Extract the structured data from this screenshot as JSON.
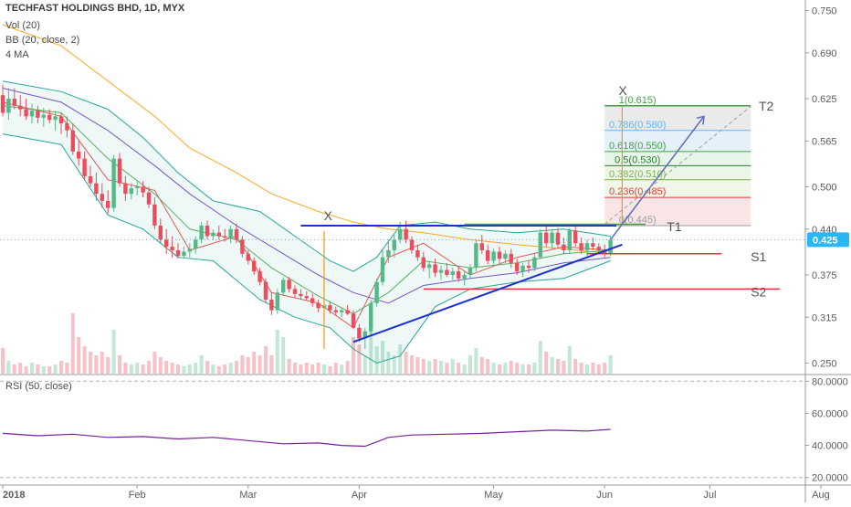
{
  "header": {
    "title": "TECHFAST HOLDINGS BHD, 1D, MYX",
    "indicators": [
      "Vol (20)",
      "BB (20, close, 2)",
      "4 MA"
    ],
    "rsi_label": "RSI (50, close)"
  },
  "price_scale": {
    "ticks": [
      "0.750",
      "0.690",
      "0.625",
      "0.565",
      "0.500",
      "0.440",
      "0.375",
      "0.315",
      "0.250"
    ],
    "last_price": "0.425"
  },
  "rsi_scale": {
    "ticks": [
      "80.0000",
      "60.0000",
      "40.0000",
      "20.0000"
    ]
  },
  "time_axis": {
    "labels": [
      "2018",
      "Feb",
      "Mar",
      "Apr",
      "May",
      "Jun",
      "Jul",
      "Aug"
    ]
  },
  "fib": {
    "levels": [
      {
        "label": "1(0.615)",
        "color": "#43a047"
      },
      {
        "label": "0.786(0.580)",
        "color": "#64b5f6"
      },
      {
        "label": "0.618(0.550)",
        "color": "#43a047"
      },
      {
        "label": "0.5(0.530)",
        "color": "#2e7d32"
      },
      {
        "label": "0.382(0.510)",
        "color": "#7cb342"
      },
      {
        "label": "0.236(0.485)",
        "color": "#e53935"
      },
      {
        "label": "0(0.445)",
        "color": "#9e9e9e"
      }
    ]
  },
  "annotations": {
    "t1": "T1",
    "t2": "T2",
    "s1": "S1",
    "s2": "S2",
    "x_left": "X",
    "x_right": "X"
  },
  "colors": {
    "up": "#53b987",
    "down": "#eb4d5c",
    "bb_band": "#26a69a",
    "ma_fast": "#e53935",
    "ma_mid": "#43a047",
    "ma_slow": "#673ab7",
    "ma_long": "#ff9800",
    "rsi_line": "#7b1fa2",
    "resistance": "#1e2fd0",
    "support": "#e53935",
    "projection": "#5c6bc0",
    "last_price_badge": "#29b6f6"
  },
  "chart_data": {
    "type": "candlestick",
    "title": "TECHFAST HOLDINGS BHD, 1D, MYX",
    "interval": "1D",
    "x_range": [
      "2018-01-01",
      "2018-08-20"
    ],
    "ylim": [
      0.235,
      0.765
    ],
    "last_close": 0.425,
    "candles": [
      [
        0.63,
        0.645,
        0.6,
        0.605
      ],
      [
        0.605,
        0.64,
        0.595,
        0.625
      ],
      [
        0.625,
        0.64,
        0.61,
        0.615
      ],
      [
        0.615,
        0.63,
        0.6,
        0.61
      ],
      [
        0.61,
        0.625,
        0.595,
        0.6
      ],
      [
        0.6,
        0.618,
        0.59,
        0.608
      ],
      [
        0.608,
        0.615,
        0.59,
        0.598
      ],
      [
        0.598,
        0.612,
        0.585,
        0.602
      ],
      [
        0.602,
        0.61,
        0.59,
        0.595
      ],
      [
        0.595,
        0.608,
        0.58,
        0.6
      ],
      [
        0.6,
        0.605,
        0.575,
        0.59
      ],
      [
        0.59,
        0.6,
        0.57,
        0.58
      ],
      [
        0.58,
        0.59,
        0.545,
        0.55
      ],
      [
        0.55,
        0.565,
        0.53,
        0.54
      ],
      [
        0.54,
        0.55,
        0.51,
        0.515
      ],
      [
        0.515,
        0.53,
        0.5,
        0.505
      ],
      [
        0.505,
        0.52,
        0.48,
        0.49
      ],
      [
        0.49,
        0.505,
        0.47,
        0.48
      ],
      [
        0.48,
        0.495,
        0.462,
        0.47
      ],
      [
        0.47,
        0.545,
        0.465,
        0.54
      ],
      [
        0.54,
        0.548,
        0.5,
        0.505
      ],
      [
        0.505,
        0.515,
        0.48,
        0.49
      ],
      [
        0.49,
        0.505,
        0.482,
        0.498
      ],
      [
        0.498,
        0.51,
        0.488,
        0.5
      ],
      [
        0.5,
        0.508,
        0.485,
        0.492
      ],
      [
        0.492,
        0.5,
        0.47,
        0.475
      ],
      [
        0.475,
        0.485,
        0.44,
        0.445
      ],
      [
        0.445,
        0.455,
        0.42,
        0.425
      ],
      [
        0.425,
        0.44,
        0.405,
        0.415
      ],
      [
        0.415,
        0.43,
        0.4,
        0.41
      ],
      [
        0.41,
        0.42,
        0.398,
        0.402
      ],
      [
        0.402,
        0.415,
        0.398,
        0.408
      ],
      [
        0.408,
        0.42,
        0.4,
        0.412
      ],
      [
        0.412,
        0.43,
        0.405,
        0.425
      ],
      [
        0.425,
        0.45,
        0.42,
        0.445
      ],
      [
        0.445,
        0.452,
        0.425,
        0.43
      ],
      [
        0.43,
        0.44,
        0.425,
        0.435
      ],
      [
        0.435,
        0.445,
        0.425,
        0.43
      ],
      [
        0.43,
        0.44,
        0.422,
        0.428
      ],
      [
        0.428,
        0.445,
        0.42,
        0.44
      ],
      [
        0.44,
        0.448,
        0.42,
        0.425
      ],
      [
        0.425,
        0.43,
        0.4,
        0.405
      ],
      [
        0.405,
        0.41,
        0.39,
        0.395
      ],
      [
        0.395,
        0.4,
        0.375,
        0.38
      ],
      [
        0.38,
        0.385,
        0.36,
        0.365
      ],
      [
        0.365,
        0.37,
        0.335,
        0.34
      ],
      [
        0.34,
        0.35,
        0.318,
        0.325
      ],
      [
        0.325,
        0.355,
        0.32,
        0.35
      ],
      [
        0.35,
        0.372,
        0.345,
        0.368
      ],
      [
        0.368,
        0.372,
        0.35,
        0.355
      ],
      [
        0.355,
        0.36,
        0.342,
        0.348
      ],
      [
        0.348,
        0.355,
        0.34,
        0.345
      ],
      [
        0.345,
        0.352,
        0.338,
        0.342
      ],
      [
        0.342,
        0.348,
        0.33,
        0.335
      ],
      [
        0.335,
        0.34,
        0.322,
        0.328
      ],
      [
        0.328,
        0.338,
        0.322,
        0.332
      ],
      [
        0.332,
        0.338,
        0.32,
        0.325
      ],
      [
        0.325,
        0.33,
        0.318,
        0.322
      ],
      [
        0.322,
        0.328,
        0.315,
        0.325
      ],
      [
        0.325,
        0.332,
        0.318,
        0.32
      ],
      [
        0.32,
        0.325,
        0.298,
        0.3
      ],
      [
        0.3,
        0.305,
        0.28,
        0.285
      ],
      [
        0.285,
        0.3,
        0.27,
        0.295
      ],
      [
        0.295,
        0.34,
        0.29,
        0.335
      ],
      [
        0.335,
        0.37,
        0.33,
        0.365
      ],
      [
        0.365,
        0.41,
        0.36,
        0.4
      ],
      [
        0.4,
        0.425,
        0.392,
        0.41
      ],
      [
        0.41,
        0.432,
        0.4,
        0.425
      ],
      [
        0.425,
        0.45,
        0.42,
        0.44
      ],
      [
        0.44,
        0.452,
        0.42,
        0.425
      ],
      [
        0.425,
        0.43,
        0.405,
        0.41
      ],
      [
        0.41,
        0.418,
        0.395,
        0.4
      ],
      [
        0.4,
        0.408,
        0.38,
        0.385
      ],
      [
        0.385,
        0.395,
        0.37,
        0.39
      ],
      [
        0.39,
        0.398,
        0.372,
        0.378
      ],
      [
        0.378,
        0.388,
        0.368,
        0.382
      ],
      [
        0.382,
        0.392,
        0.372,
        0.375
      ],
      [
        0.375,
        0.385,
        0.368,
        0.38
      ],
      [
        0.38,
        0.388,
        0.365,
        0.37
      ],
      [
        0.37,
        0.38,
        0.36,
        0.375
      ],
      [
        0.375,
        0.39,
        0.37,
        0.385
      ],
      [
        0.385,
        0.425,
        0.38,
        0.42
      ],
      [
        0.42,
        0.432,
        0.405,
        0.41
      ],
      [
        0.41,
        0.418,
        0.39,
        0.395
      ],
      [
        0.395,
        0.412,
        0.39,
        0.408
      ],
      [
        0.408,
        0.415,
        0.392,
        0.398
      ],
      [
        0.398,
        0.41,
        0.392,
        0.405
      ],
      [
        0.405,
        0.412,
        0.385,
        0.392
      ],
      [
        0.392,
        0.398,
        0.375,
        0.38
      ],
      [
        0.38,
        0.392,
        0.372,
        0.388
      ],
      [
        0.388,
        0.395,
        0.378,
        0.385
      ],
      [
        0.385,
        0.405,
        0.38,
        0.4
      ],
      [
        0.4,
        0.44,
        0.398,
        0.435
      ],
      [
        0.435,
        0.445,
        0.415,
        0.42
      ],
      [
        0.42,
        0.44,
        0.412,
        0.435
      ],
      [
        0.435,
        0.442,
        0.412,
        0.418
      ],
      [
        0.418,
        0.428,
        0.405,
        0.41
      ],
      [
        0.41,
        0.442,
        0.405,
        0.438
      ],
      [
        0.438,
        0.445,
        0.415,
        0.42
      ],
      [
        0.42,
        0.428,
        0.405,
        0.41
      ],
      [
        0.41,
        0.425,
        0.402,
        0.42
      ],
      [
        0.42,
        0.428,
        0.41,
        0.415
      ],
      [
        0.415,
        0.42,
        0.405,
        0.41
      ],
      [
        0.41,
        0.418,
        0.4,
        0.405
      ],
      [
        0.405,
        0.43,
        0.402,
        0.425
      ]
    ],
    "volume": [
      14,
      7,
      5,
      6,
      4,
      6,
      5,
      4,
      4,
      5,
      7,
      6,
      33,
      20,
      15,
      12,
      10,
      12,
      9,
      24,
      10,
      6,
      5,
      6,
      5,
      7,
      12,
      9,
      7,
      6,
      5,
      4,
      5,
      6,
      10,
      7,
      5,
      4,
      5,
      6,
      7,
      10,
      9,
      12,
      10,
      15,
      10,
      24,
      20,
      8,
      6,
      5,
      6,
      5,
      6,
      5,
      4,
      6,
      5,
      7,
      20,
      16,
      10,
      28,
      15,
      18,
      12,
      10,
      16,
      12,
      10,
      9,
      8,
      7,
      8,
      7,
      6,
      8,
      6,
      5,
      10,
      14,
      9,
      8,
      6,
      5,
      6,
      7,
      6,
      5,
      5,
      6,
      18,
      12,
      9,
      8,
      7,
      15,
      8,
      6,
      5,
      6,
      5,
      6,
      10
    ],
    "bollinger": {
      "upper": [
        [
          0,
          0.65
        ],
        [
          10,
          0.635
        ],
        [
          18,
          0.61
        ],
        [
          24,
          0.57
        ],
        [
          30,
          0.52
        ],
        [
          36,
          0.48
        ],
        [
          44,
          0.465
        ],
        [
          50,
          0.43
        ],
        [
          56,
          0.395
        ],
        [
          60,
          0.38
        ],
        [
          64,
          0.4
        ],
        [
          68,
          0.445
        ],
        [
          74,
          0.45
        ],
        [
          80,
          0.44
        ],
        [
          88,
          0.435
        ],
        [
          96,
          0.44
        ],
        [
          104,
          0.43
        ]
      ],
      "lower": [
        [
          0,
          0.575
        ],
        [
          10,
          0.56
        ],
        [
          18,
          0.46
        ],
        [
          24,
          0.44
        ],
        [
          30,
          0.4
        ],
        [
          36,
          0.395
        ],
        [
          44,
          0.34
        ],
        [
          50,
          0.315
        ],
        [
          56,
          0.3
        ],
        [
          60,
          0.27
        ],
        [
          64,
          0.25
        ],
        [
          68,
          0.26
        ],
        [
          74,
          0.33
        ],
        [
          80,
          0.355
        ],
        [
          88,
          0.365
        ],
        [
          96,
          0.37
        ],
        [
          104,
          0.395
        ]
      ]
    },
    "moving_averages": [
      {
        "name": "MA fast",
        "points": [
          [
            0,
            0.62
          ],
          [
            10,
            0.6
          ],
          [
            18,
            0.51
          ],
          [
            26,
            0.495
          ],
          [
            32,
            0.41
          ],
          [
            40,
            0.43
          ],
          [
            46,
            0.35
          ],
          [
            54,
            0.335
          ],
          [
            60,
            0.3
          ],
          [
            66,
            0.4
          ],
          [
            72,
            0.42
          ],
          [
            80,
            0.375
          ],
          [
            88,
            0.4
          ],
          [
            96,
            0.415
          ],
          [
            104,
            0.41
          ]
        ]
      },
      {
        "name": "MA mid",
        "points": [
          [
            0,
            0.615
          ],
          [
            10,
            0.605
          ],
          [
            18,
            0.54
          ],
          [
            26,
            0.49
          ],
          [
            32,
            0.44
          ],
          [
            40,
            0.425
          ],
          [
            46,
            0.385
          ],
          [
            54,
            0.345
          ],
          [
            60,
            0.32
          ],
          [
            66,
            0.35
          ],
          [
            72,
            0.395
          ],
          [
            80,
            0.385
          ],
          [
            88,
            0.392
          ],
          [
            96,
            0.405
          ],
          [
            104,
            0.41
          ]
        ]
      },
      {
        "name": "MA slow",
        "points": [
          [
            0,
            0.64
          ],
          [
            10,
            0.62
          ],
          [
            18,
            0.58
          ],
          [
            26,
            0.53
          ],
          [
            32,
            0.49
          ],
          [
            40,
            0.445
          ],
          [
            46,
            0.415
          ],
          [
            54,
            0.375
          ],
          [
            60,
            0.35
          ],
          [
            66,
            0.335
          ],
          [
            72,
            0.36
          ],
          [
            80,
            0.37
          ],
          [
            88,
            0.378
          ],
          [
            96,
            0.392
          ],
          [
            104,
            0.4
          ]
        ]
      },
      {
        "name": "MA long",
        "points": [
          [
            0,
            0.73
          ],
          [
            10,
            0.7
          ],
          [
            18,
            0.65
          ],
          [
            26,
            0.6
          ],
          [
            32,
            0.555
          ],
          [
            40,
            0.52
          ],
          [
            46,
            0.49
          ],
          [
            54,
            0.465
          ],
          [
            60,
            0.45
          ],
          [
            66,
            0.44
          ],
          [
            72,
            0.435
          ],
          [
            80,
            0.425
          ],
          [
            88,
            0.418
          ],
          [
            96,
            0.412
          ],
          [
            104,
            0.405
          ]
        ]
      }
    ],
    "rsi": {
      "ylim": [
        17,
        83
      ],
      "ticks": [
        80,
        60,
        40,
        20
      ],
      "points": [
        [
          0,
          47.5
        ],
        [
          6,
          46
        ],
        [
          12,
          47
        ],
        [
          18,
          45
        ],
        [
          24,
          45.5
        ],
        [
          30,
          44
        ],
        [
          36,
          45
        ],
        [
          42,
          43
        ],
        [
          48,
          41
        ],
        [
          54,
          41.5
        ],
        [
          58,
          40
        ],
        [
          62,
          39.5
        ],
        [
          66,
          45
        ],
        [
          70,
          46.5
        ],
        [
          76,
          47
        ],
        [
          82,
          47.5
        ],
        [
          88,
          48.5
        ],
        [
          94,
          49.5
        ],
        [
          100,
          49
        ],
        [
          104,
          50
        ]
      ]
    },
    "drawings": {
      "resistance": 0.445,
      "support_s1": 0.405,
      "support_s2": 0.355,
      "trendline": [
        [
          60,
          0.28
        ],
        [
          106,
          0.418
        ]
      ],
      "target_t1": 0.445,
      "target_t2": 0.615,
      "fib_levels": [
        0.615,
        0.58,
        0.55,
        0.53,
        0.51,
        0.485,
        0.445
      ]
    }
  }
}
